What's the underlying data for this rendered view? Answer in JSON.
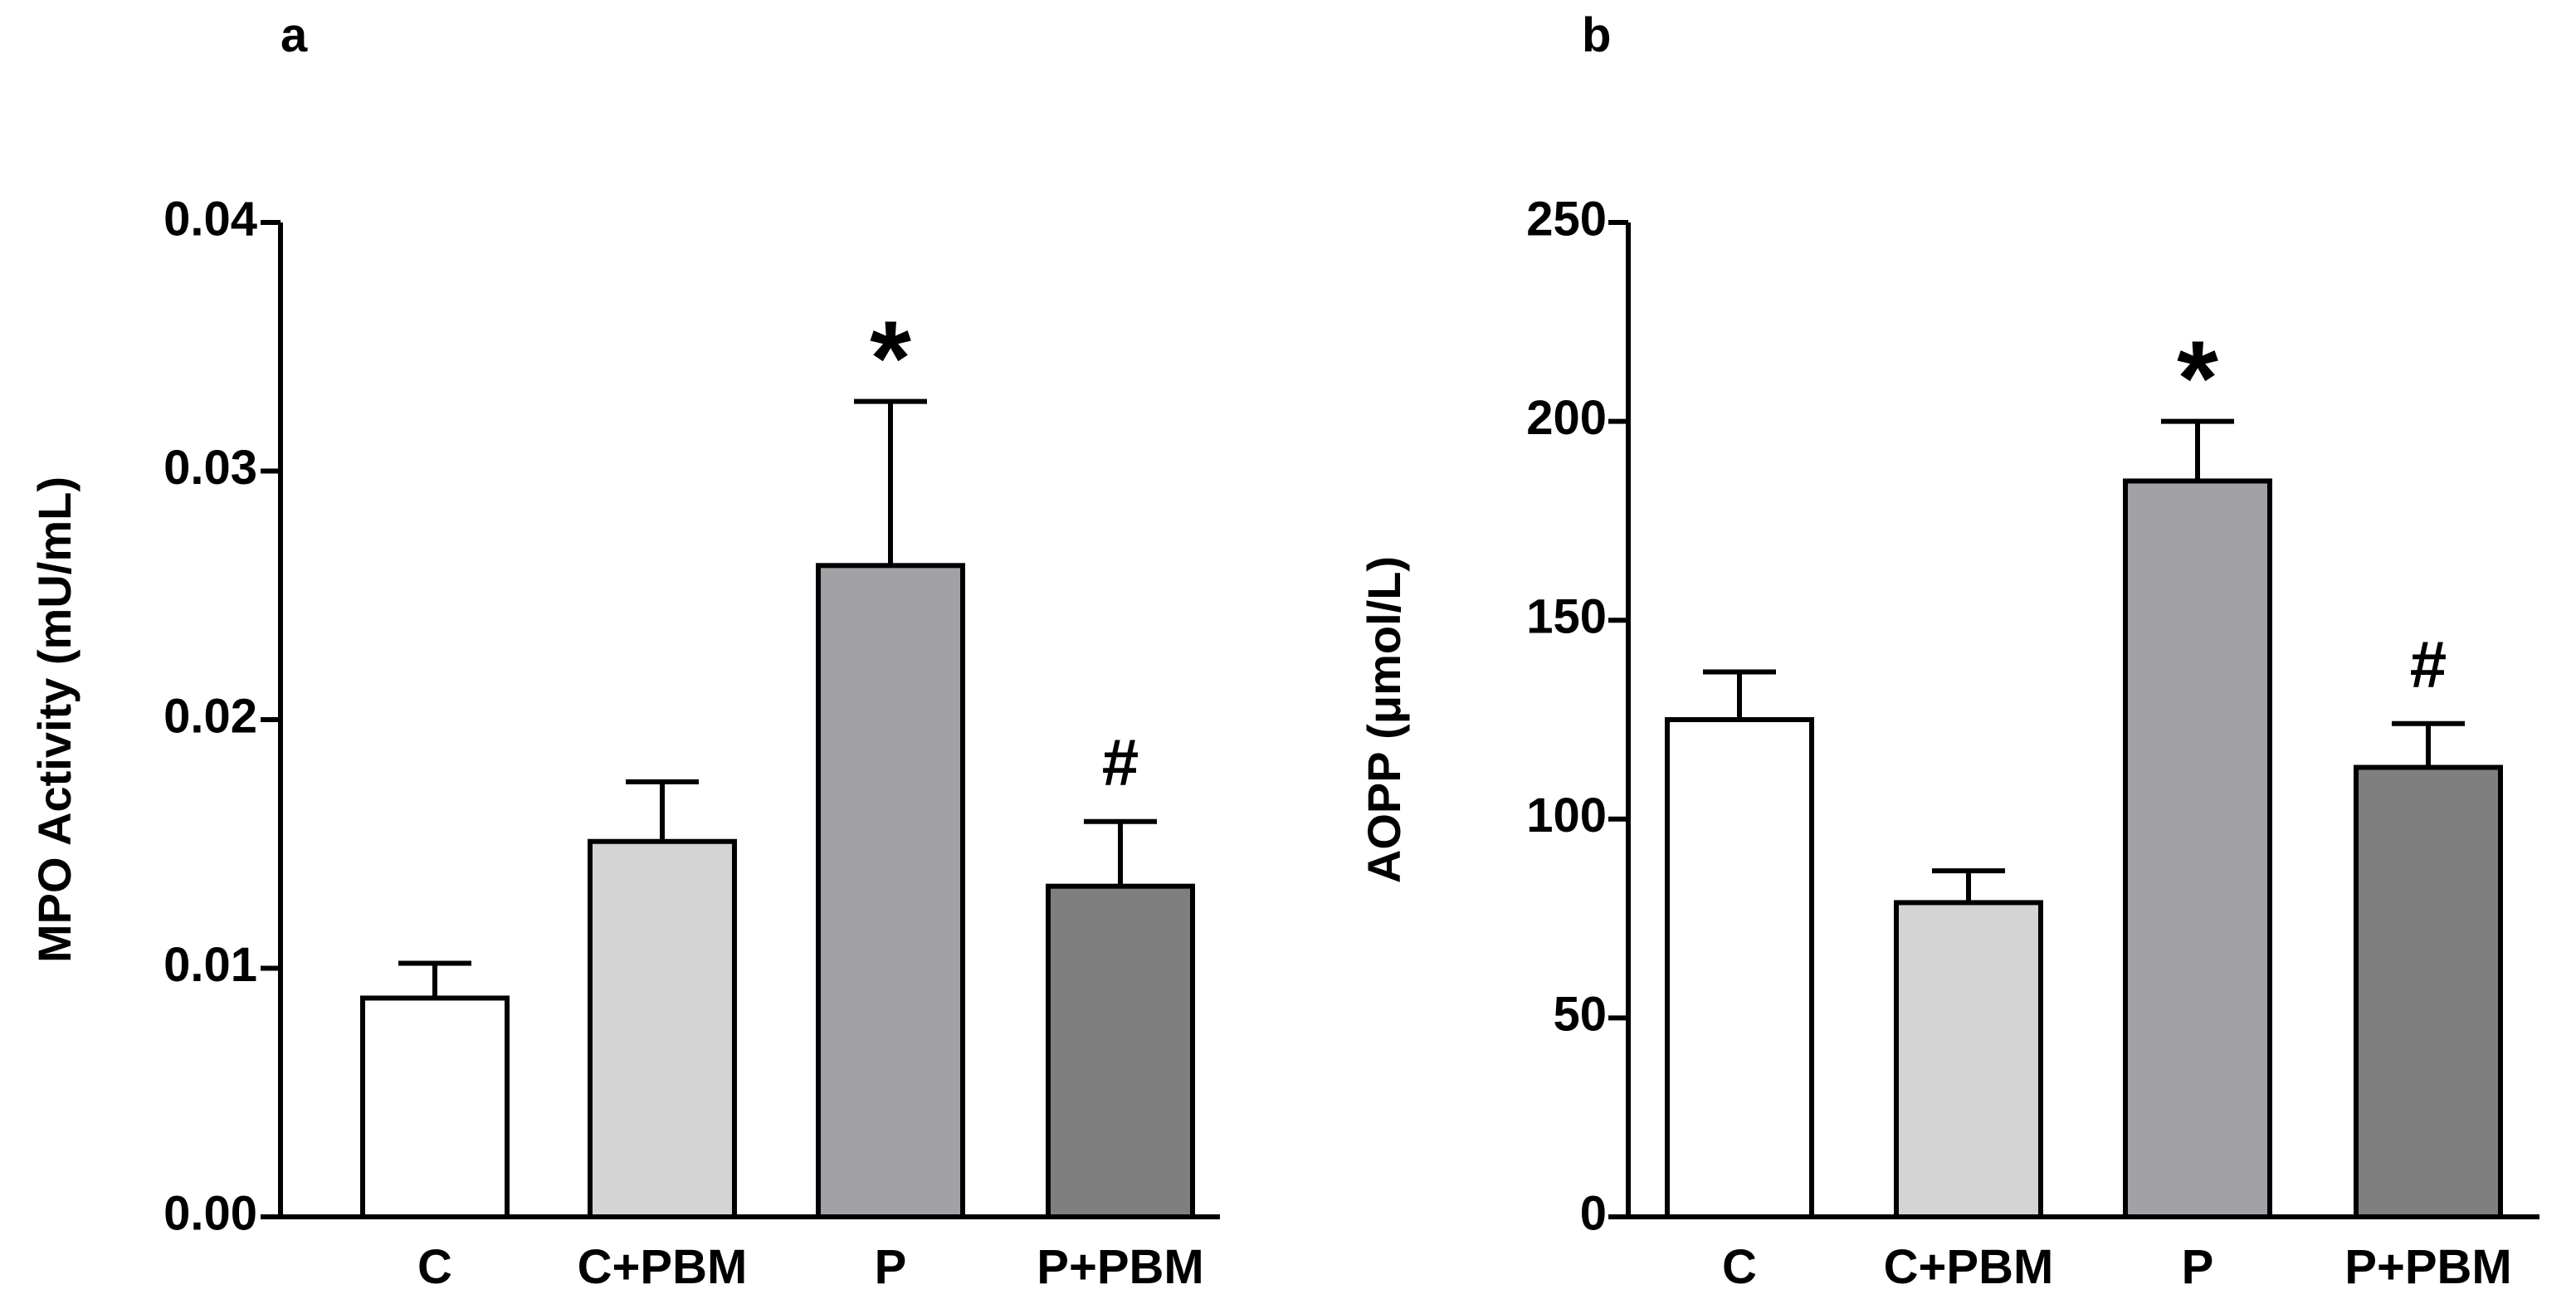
{
  "chart_data": [
    {
      "type": "bar",
      "panel_label": "a",
      "categories": [
        "C",
        "C+PBM",
        "P",
        "P+PBM"
      ],
      "values": [
        0.0088,
        0.0151,
        0.0262,
        0.0133
      ],
      "error_bars": [
        0.0014,
        0.0024,
        0.0066,
        0.0026
      ],
      "significance": [
        "",
        "",
        "*",
        "#"
      ],
      "bar_colors": [
        "#ffffff",
        "#d4d4d4",
        "#a1a1a6",
        "#7f7f7f"
      ],
      "title": "",
      "xlabel": "",
      "ylabel": "MPO Activity (mU/mL)",
      "ylim": [
        0,
        0.04
      ],
      "yticks": [
        0,
        0.01,
        0.02,
        0.03,
        0.04
      ],
      "ytick_labels": [
        "0.00",
        "0.01",
        "0.02",
        "0.03",
        "0.04"
      ],
      "grid": false,
      "legend": "none"
    },
    {
      "type": "bar",
      "panel_label": "b",
      "categories": [
        "C",
        "C+PBM",
        "P",
        "P+PBM"
      ],
      "values": [
        125,
        79,
        185,
        113
      ],
      "error_bars": [
        12,
        8,
        15,
        11
      ],
      "significance": [
        "",
        "",
        "*",
        "#"
      ],
      "bar_colors": [
        "#ffffff",
        "#d4d4d4",
        "#a1a1a6",
        "#7f7f7f"
      ],
      "title": "",
      "xlabel": "",
      "ylabel": "AOPP (μmol/L)",
      "ylim": [
        0,
        250
      ],
      "yticks": [
        0,
        50,
        100,
        150,
        200,
        250
      ],
      "ytick_labels": [
        "0",
        "50",
        "100",
        "150",
        "200",
        "250"
      ],
      "grid": false,
      "legend": "none"
    }
  ]
}
